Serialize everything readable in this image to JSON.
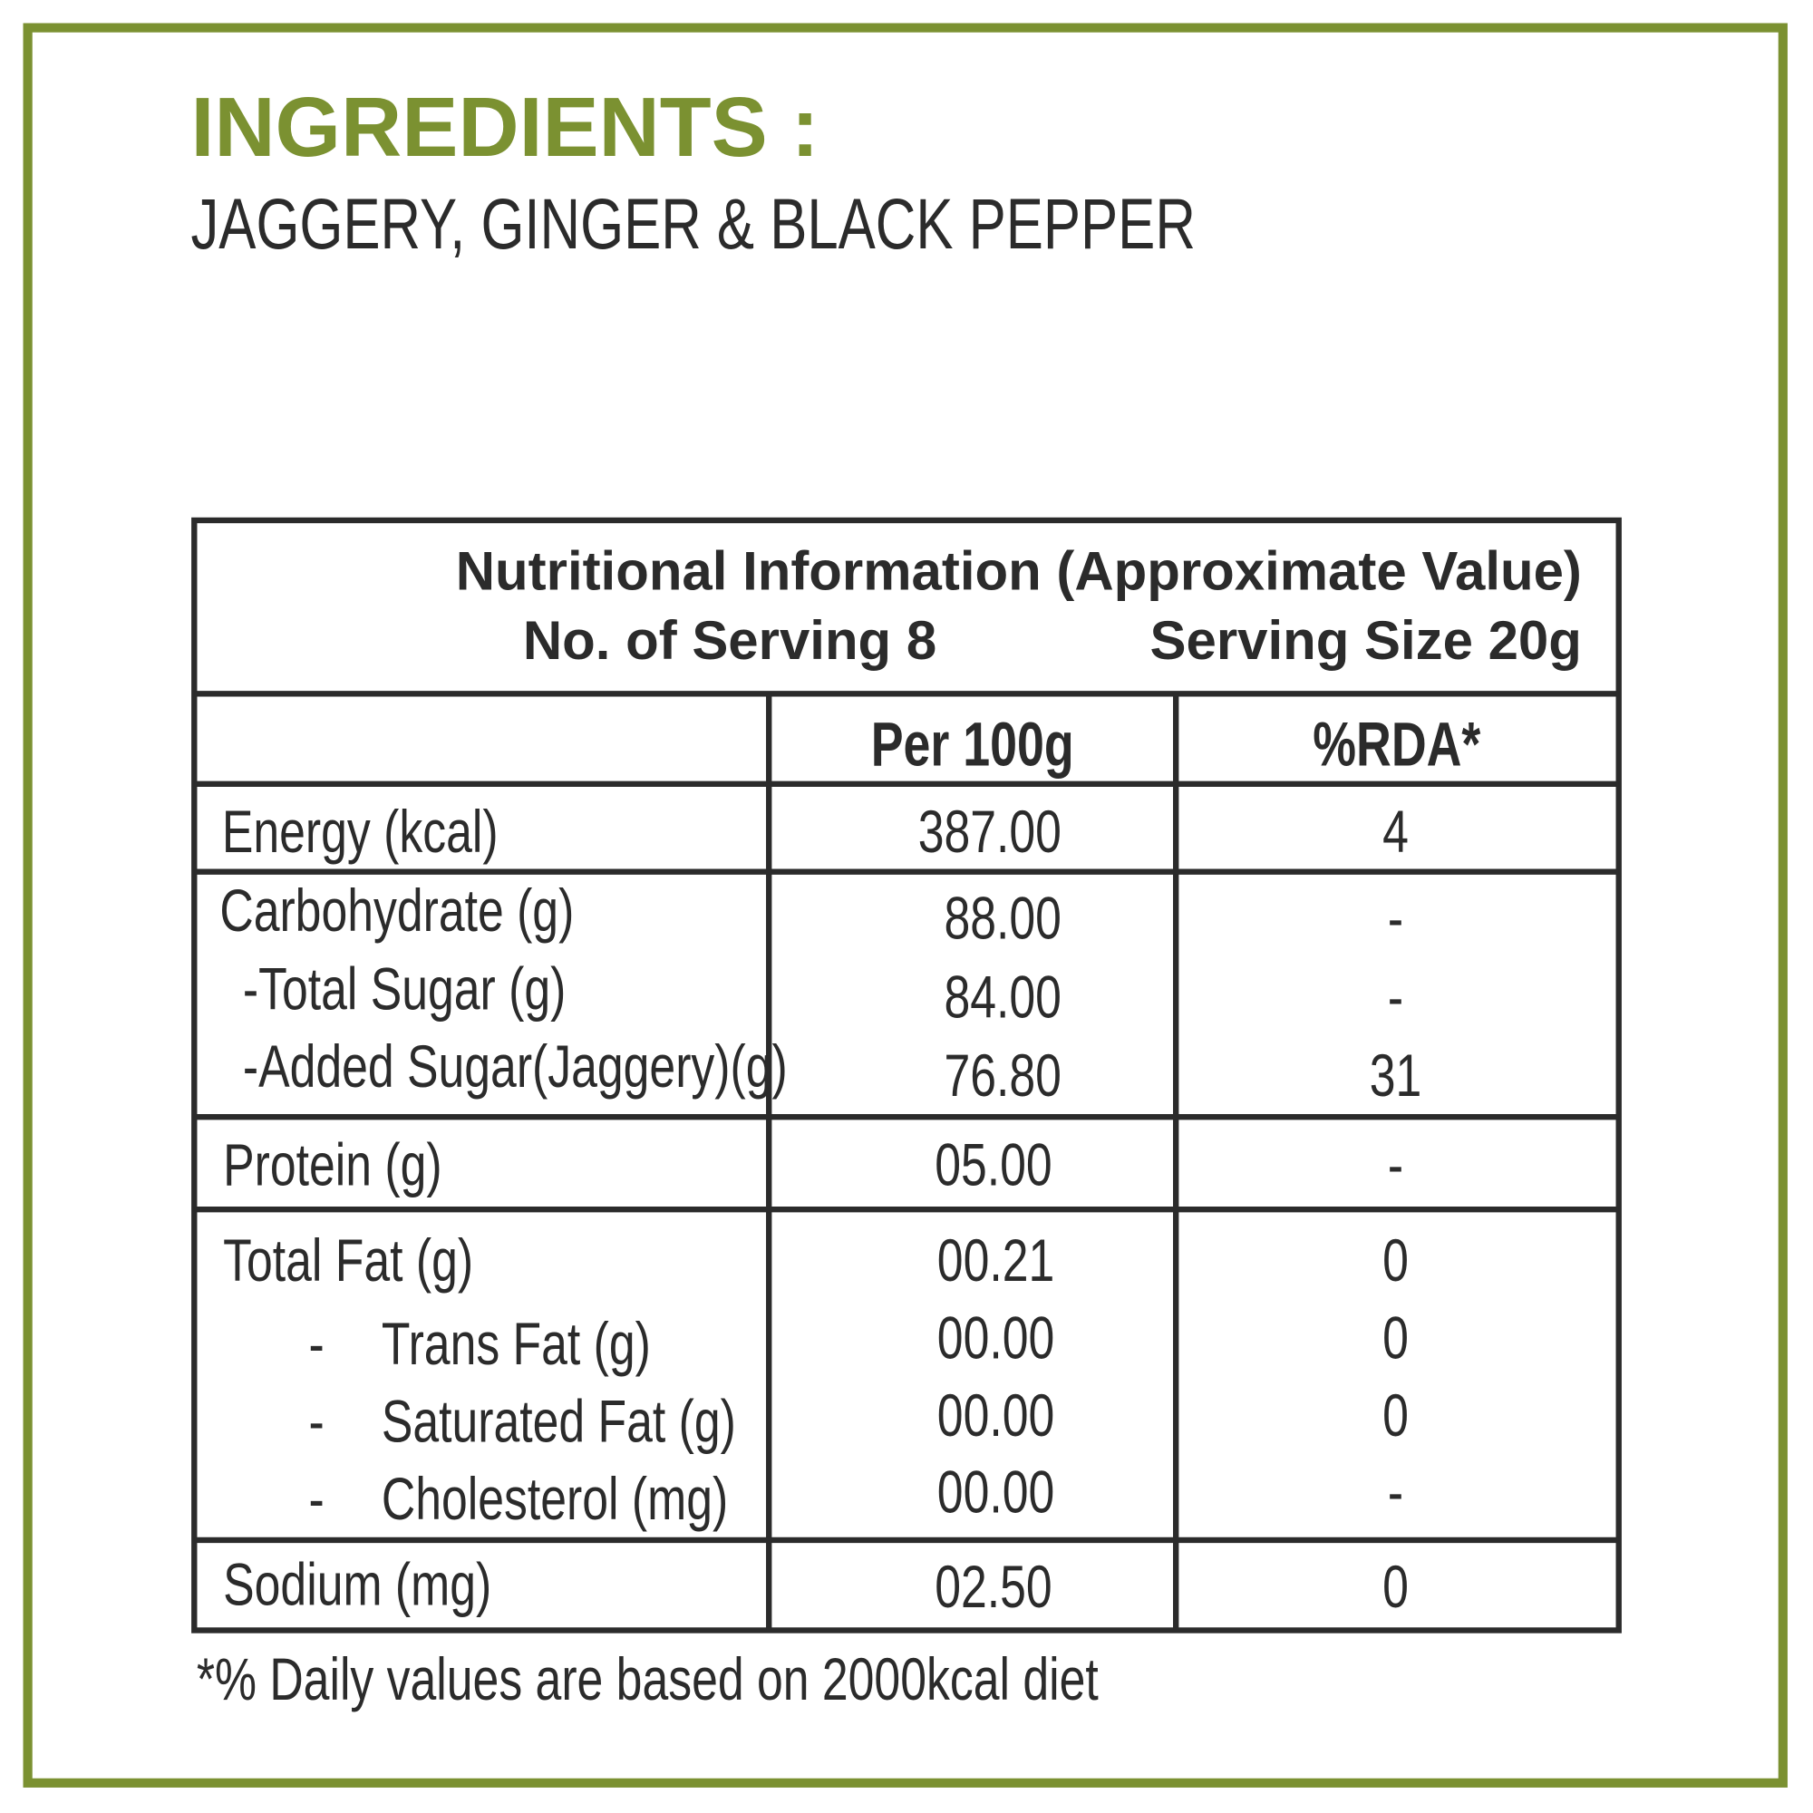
{
  "ingredients": {
    "title": "INGREDIENTS :",
    "text": "JAGGERY, GINGER & BLACK PEPPER"
  },
  "table": {
    "title": "Nutritional Information (Approximate Value)",
    "servings": "No. of Serving 8",
    "serving_size": "Serving Size 20g",
    "headers": [
      "Per 100g",
      "%RDA*"
    ],
    "rows": [
      {
        "label": "Energy (kcal)",
        "per100g": "387.00",
        "rda": "4"
      },
      {
        "label": "Carbohydrate (g)",
        "per100g": "88.00",
        "rda": "-"
      },
      {
        "label": "-Total Sugar (g)",
        "per100g": "84.00",
        "rda": "-"
      },
      {
        "label": "-Added Sugar(Jaggery)(g)",
        "per100g": "76.80",
        "rda": "31"
      },
      {
        "label": "Protein (g)",
        "per100g": "05.00",
        "rda": "-"
      },
      {
        "label": "Total Fat (g)",
        "per100g": "00.21",
        "rda": "0"
      },
      {
        "marker": "-",
        "label": "Trans Fat (g)",
        "per100g": "00.00",
        "rda": "0"
      },
      {
        "marker": "-",
        "label": "Saturated Fat (g)",
        "per100g": "00.00",
        "rda": "0"
      },
      {
        "marker": "-",
        "label": "Cholesterol (mg)",
        "per100g": "00.00",
        "rda": "-"
      },
      {
        "label": "Sodium (mg)",
        "per100g": "02.50",
        "rda": "0"
      }
    ]
  },
  "footnote": "*% Daily values are based on 2000kcal diet"
}
